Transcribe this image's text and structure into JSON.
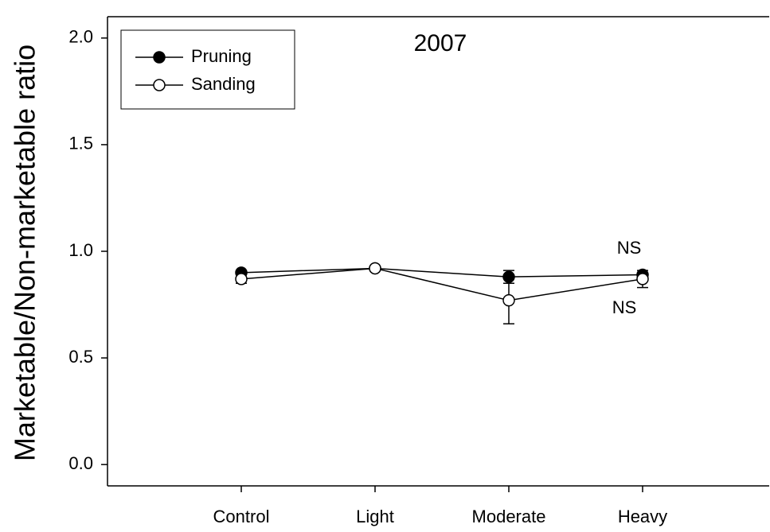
{
  "chart_data": {
    "type": "line",
    "title": "2007",
    "y_label": "Marketable/Non-marketable ratio",
    "categories": [
      "Control",
      "Light",
      "Moderate",
      "Heavy"
    ],
    "series": [
      {
        "name": "Pruning",
        "color": "#000000",
        "marker_fill": "#000000",
        "values": [
          0.9,
          0.92,
          0.88,
          0.89
        ],
        "errors": [
          0.01,
          0.01,
          0.03,
          0.01
        ]
      },
      {
        "name": "Sanding",
        "color": "#000000",
        "marker_fill": "#ffffff",
        "values": [
          0.87,
          0.92,
          0.77,
          0.87
        ],
        "errors": [
          0.02,
          0.01,
          0.11,
          0.04
        ]
      }
    ],
    "annotations": [
      "NS",
      "NS"
    ],
    "ylim": [
      -0.1,
      2.1
    ],
    "yticks": [
      {
        "value": 0,
        "label": "0.0"
      },
      0.5,
      {
        "value": 1,
        "label": "1.0"
      },
      1.5,
      {
        "value": 2,
        "label": "2.0"
      }
    ],
    "legend": "upper left",
    "grid": false
  }
}
